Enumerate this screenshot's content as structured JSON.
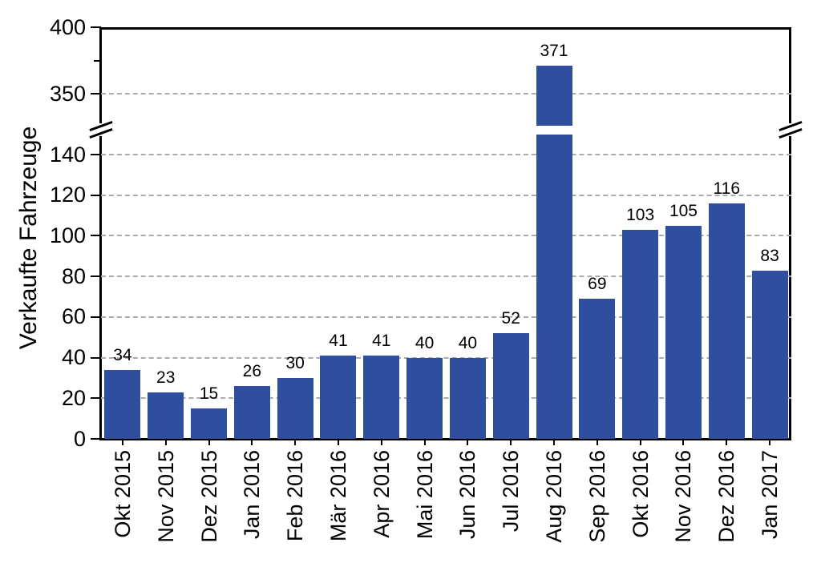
{
  "chart_data": {
    "type": "bar",
    "title": "",
    "xlabel": "",
    "ylabel": "Verkaufte Fahrzeuge",
    "categories": [
      "Okt 2015",
      "Nov 2015",
      "Dez 2015",
      "Jan 2016",
      "Feb 2016",
      "Mär 2016",
      "Apr 2016",
      "Mai 2016",
      "Jun 2016",
      "Jul 2016",
      "Aug 2016",
      "Sep 2016",
      "Okt 2016",
      "Nov 2016",
      "Dez 2016",
      "Jan 2017"
    ],
    "values": [
      34,
      23,
      15,
      26,
      30,
      41,
      41,
      40,
      40,
      52,
      371,
      69,
      103,
      105,
      116,
      83
    ],
    "value_labels": [
      "34",
      "23",
      "15",
      "26",
      "30",
      "41",
      "41",
      "40",
      "40",
      "52",
      "371",
      "69",
      "103",
      "105",
      "116",
      "83"
    ],
    "bar_color": "#2F4E9D",
    "grid": "horizontal-dashed",
    "grid_color": "#ABABAB",
    "axis_color": "#000000",
    "text_color": "#000000",
    "y_axis": {
      "has_break": true,
      "lower_segment_range": [
        0,
        150
      ],
      "upper_segment_range": [
        340,
        400
      ],
      "lower_ticks": [
        0,
        20,
        40,
        60,
        80,
        100,
        120,
        140
      ],
      "upper_ticks": [
        350,
        400
      ],
      "upper_minor_ticks": [
        375
      ]
    },
    "legend": null
  }
}
